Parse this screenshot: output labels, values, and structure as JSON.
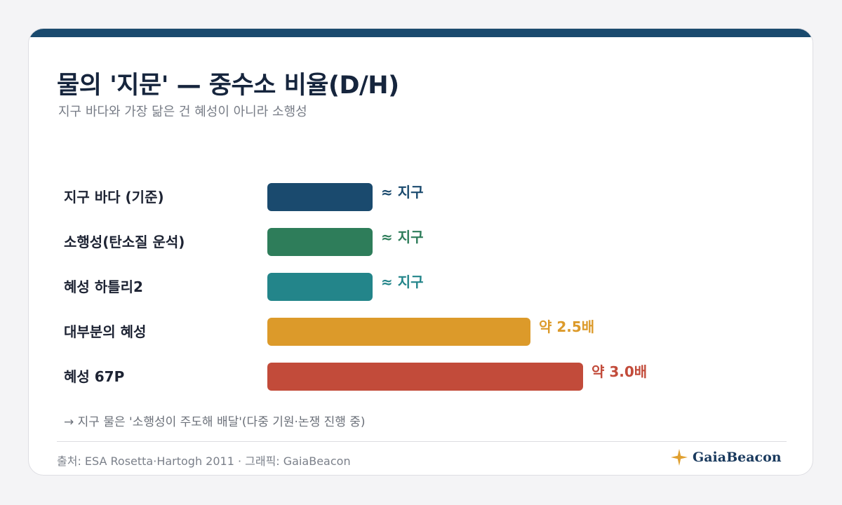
{
  "header": {
    "title": "물의 '지문' — 중수소 비율(D/H)",
    "subtitle": "지구 바다와 가장 닮은 건 혜성이 아니라 소행성"
  },
  "colors": {
    "topbar": "#1a4a6e",
    "title": "#16253d"
  },
  "chart_data": {
    "type": "bar",
    "orientation": "horizontal",
    "unit": "× 지구 바다",
    "categories": [
      "지구 바다 (기준)",
      "소행성(탄소질 운석)",
      "혜성 하틀리2",
      "대부분의 혜성",
      "혜성 67P"
    ],
    "values": [
      1.0,
      1.0,
      1.0,
      2.5,
      3.0
    ],
    "value_labels": [
      "≈ 지구",
      "≈ 지구",
      "≈ 지구",
      "약 2.5배",
      "약 3.0배"
    ],
    "colors": [
      "#1a4a6e",
      "#2e7d5a",
      "#23858a",
      "#dc9a2a",
      "#c24b3a"
    ],
    "xlim": [
      0,
      3.0
    ],
    "grid": false,
    "legend": "none"
  },
  "note": "→ 지구 물은 '소행성이 주도해 배달'(다중 기원·논쟁 진행 중)",
  "footer": {
    "source": "출처: ESA Rosetta·Hartogh 2011 · 그래픽: GaiaBeacon",
    "brand": "GaiaBeacon",
    "brand_icon": "four-point-star-icon",
    "brand_icon_color": "#e0a030"
  }
}
